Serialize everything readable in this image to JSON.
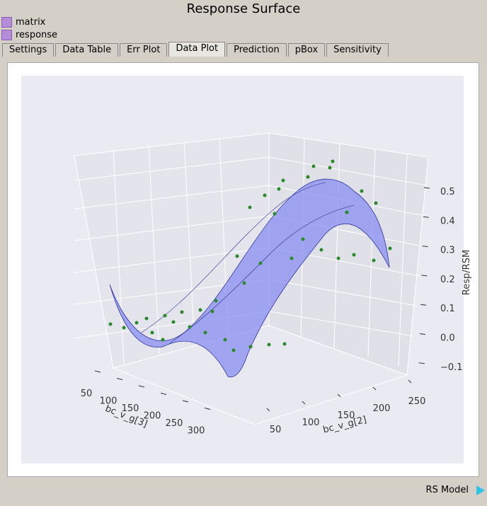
{
  "window": {
    "title": "Response Surface"
  },
  "tree": [
    "matrix",
    "response"
  ],
  "tabs": [
    "Settings",
    "Data Table",
    "Err Plot",
    "Data Plot",
    "Prediction",
    "pBox",
    "Sensitivity"
  ],
  "active_tab": "Data Plot",
  "plot": {
    "z_label": "Resp/RSM",
    "z_ticks": [
      "0.5",
      "0.4",
      "0.3",
      "0.2",
      "0.1",
      "0.0",
      "−0.1"
    ],
    "x_label": "bc_v_g[3]",
    "x_ticks": [
      "50",
      "100",
      "150",
      "200",
      "250",
      "300"
    ],
    "y_label": "bc_v_g[2]",
    "y_ticks": [
      "50",
      "100",
      "150",
      "200",
      "250"
    ]
  },
  "status": "RS Model"
}
